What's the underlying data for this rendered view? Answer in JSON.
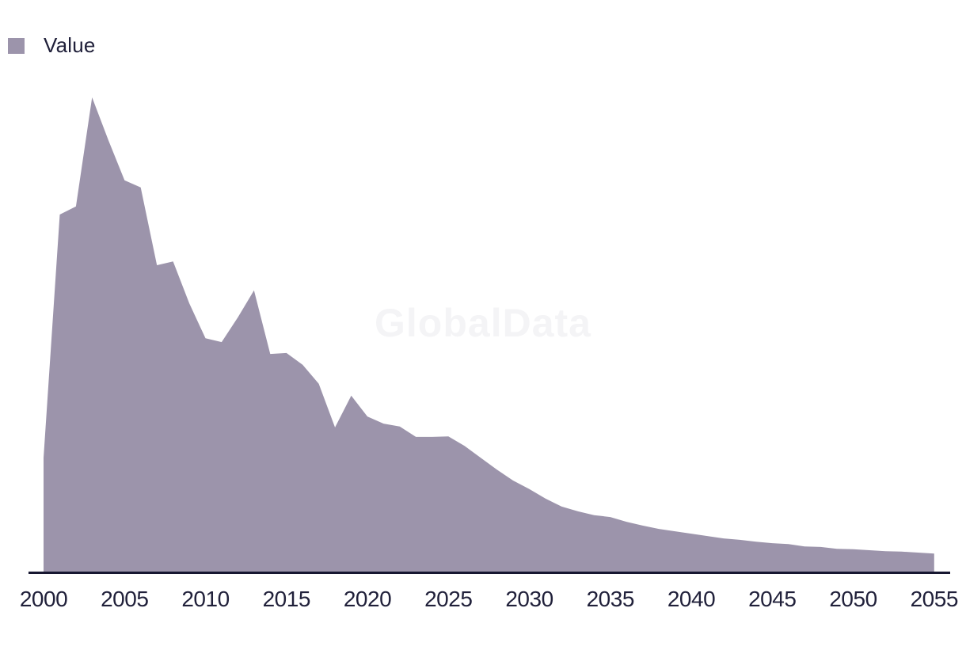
{
  "legend": {
    "items": [
      {
        "label": "Value",
        "color": "#9C94AB"
      }
    ]
  },
  "watermark": {
    "text": "GlobalData"
  },
  "chart_data": {
    "type": "area",
    "title": "",
    "xlabel": "",
    "ylabel": "",
    "x": [
      2000,
      2001,
      2002,
      2003,
      2004,
      2005,
      2006,
      2007,
      2008,
      2009,
      2010,
      2011,
      2012,
      2013,
      2014,
      2015,
      2016,
      2017,
      2018,
      2019,
      2020,
      2021,
      2022,
      2023,
      2024,
      2025,
      2026,
      2027,
      2028,
      2029,
      2030,
      2031,
      2032,
      2033,
      2034,
      2035,
      2036,
      2037,
      2038,
      2039,
      2040,
      2041,
      2042,
      2043,
      2044,
      2045,
      2046,
      2047,
      2048,
      2049,
      2050,
      2051,
      2052,
      2053,
      2054,
      2055
    ],
    "series": [
      {
        "name": "Value",
        "color": "#9C94AB",
        "values": [
          24.0,
          75.3,
          77.0,
          100.0,
          91.0,
          82.5,
          81.0,
          64.6,
          65.4,
          56.6,
          49.2,
          48.4,
          53.6,
          59.3,
          45.9,
          46.1,
          43.6,
          39.6,
          30.4,
          37.1,
          32.7,
          31.2,
          30.6,
          28.4,
          28.4,
          28.5,
          26.5,
          24.0,
          21.5,
          19.2,
          17.4,
          15.4,
          13.7,
          12.7,
          11.9,
          11.5,
          10.5,
          9.7,
          9.0,
          8.5,
          8.0,
          7.5,
          7.0,
          6.7,
          6.3,
          6.0,
          5.8,
          5.3,
          5.2,
          4.8,
          4.7,
          4.5,
          4.3,
          4.2,
          4.0,
          3.8
        ]
      }
    ],
    "values_unit": "relative (percent of peak; no y-axis labels shown)",
    "x_tick_labels": [
      "2000",
      "2005",
      "2010",
      "2015",
      "2020",
      "2025",
      "2030",
      "2035",
      "2040",
      "2045",
      "2050",
      "2055"
    ],
    "xlim": [
      2000,
      2055
    ],
    "ylim": [
      0,
      104
    ],
    "grid": false,
    "y_axis_visible": false,
    "legend_position": "top-left"
  },
  "colors": {
    "background": "#FFFFFF",
    "area": "#9C94AB",
    "axis": "#171731",
    "tick_label": "#20203A",
    "watermark": "#F4F4F6"
  }
}
